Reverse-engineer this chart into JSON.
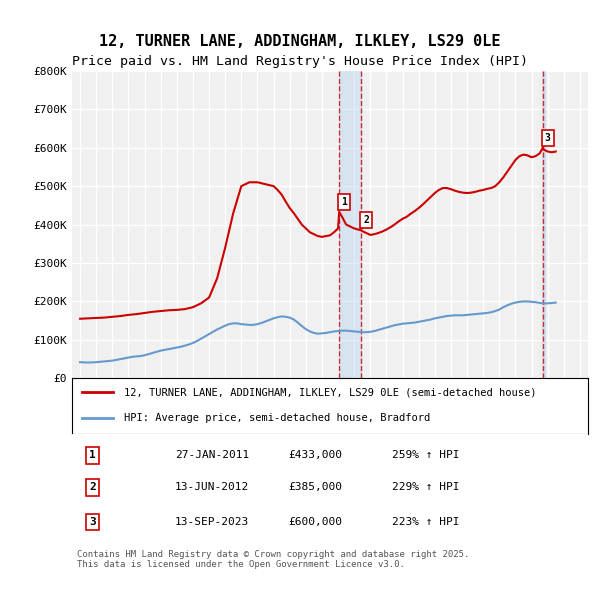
{
  "title": "12, TURNER LANE, ADDINGHAM, ILKLEY, LS29 0LE",
  "subtitle": "Price paid vs. HM Land Registry's House Price Index (HPI)",
  "title_fontsize": 11,
  "subtitle_fontsize": 9.5,
  "ylabel": "",
  "xlabel": "",
  "ylim": [
    0,
    800000
  ],
  "xlim": [
    1994.5,
    2026.5
  ],
  "yticks": [
    0,
    100000,
    200000,
    300000,
    400000,
    500000,
    600000,
    700000,
    800000
  ],
  "ytick_labels": [
    "£0",
    "£100K",
    "£200K",
    "£300K",
    "£400K",
    "£500K",
    "£600K",
    "£700K",
    "£800K"
  ],
  "xticks": [
    1995,
    1996,
    1997,
    1998,
    1999,
    2000,
    2001,
    2002,
    2003,
    2004,
    2005,
    2006,
    2007,
    2008,
    2009,
    2010,
    2011,
    2012,
    2013,
    2014,
    2015,
    2016,
    2017,
    2018,
    2019,
    2020,
    2021,
    2022,
    2023,
    2024,
    2025,
    2026
  ],
  "bg_color": "#f0f0f0",
  "grid_color": "#ffffff",
  "red_color": "#cc0000",
  "blue_color": "#6699cc",
  "sale1_x": 2011.07,
  "sale1_y": 433000,
  "sale1_label": "1",
  "sale2_x": 2012.45,
  "sale2_y": 385000,
  "sale2_label": "2",
  "sale3_x": 2023.7,
  "sale3_y": 600000,
  "sale3_label": "3",
  "legend_line1": "12, TURNER LANE, ADDINGHAM, ILKLEY, LS29 0LE (semi-detached house)",
  "legend_line2": "HPI: Average price, semi-detached house, Bradford",
  "table_data": [
    [
      "1",
      "27-JAN-2011",
      "£433,000",
      "259% ↑ HPI"
    ],
    [
      "2",
      "13-JUN-2012",
      "£385,000",
      "229% ↑ HPI"
    ],
    [
      "3",
      "13-SEP-2023",
      "£600,000",
      "223% ↑ HPI"
    ]
  ],
  "footer": "Contains HM Land Registry data © Crown copyright and database right 2025.\nThis data is licensed under the Open Government Licence v3.0.",
  "hpi_data_x": [
    1995.0,
    1995.25,
    1995.5,
    1995.75,
    1996.0,
    1996.25,
    1996.5,
    1996.75,
    1997.0,
    1997.25,
    1997.5,
    1997.75,
    1998.0,
    1998.25,
    1998.5,
    1998.75,
    1999.0,
    1999.25,
    1999.5,
    1999.75,
    2000.0,
    2000.25,
    2000.5,
    2000.75,
    2001.0,
    2001.25,
    2001.5,
    2001.75,
    2002.0,
    2002.25,
    2002.5,
    2002.75,
    2003.0,
    2003.25,
    2003.5,
    2003.75,
    2004.0,
    2004.25,
    2004.5,
    2004.75,
    2005.0,
    2005.25,
    2005.5,
    2005.75,
    2006.0,
    2006.25,
    2006.5,
    2006.75,
    2007.0,
    2007.25,
    2007.5,
    2007.75,
    2008.0,
    2008.25,
    2008.5,
    2008.75,
    2009.0,
    2009.25,
    2009.5,
    2009.75,
    2010.0,
    2010.25,
    2010.5,
    2010.75,
    2011.0,
    2011.25,
    2011.5,
    2011.75,
    2012.0,
    2012.25,
    2012.5,
    2012.75,
    2013.0,
    2013.25,
    2013.5,
    2013.75,
    2014.0,
    2014.25,
    2014.5,
    2014.75,
    2015.0,
    2015.25,
    2015.5,
    2015.75,
    2016.0,
    2016.25,
    2016.5,
    2016.75,
    2017.0,
    2017.25,
    2017.5,
    2017.75,
    2018.0,
    2018.25,
    2018.5,
    2018.75,
    2019.0,
    2019.25,
    2019.5,
    2019.75,
    2020.0,
    2020.25,
    2020.5,
    2020.75,
    2021.0,
    2021.25,
    2021.5,
    2021.75,
    2022.0,
    2022.25,
    2022.5,
    2022.75,
    2023.0,
    2023.25,
    2023.5,
    2023.75,
    2024.0,
    2024.25,
    2024.5
  ],
  "hpi_data_y": [
    42000,
    41500,
    41000,
    41500,
    42000,
    43000,
    44000,
    45000,
    46000,
    48000,
    50000,
    52000,
    54000,
    56000,
    57000,
    58000,
    60000,
    63000,
    66000,
    69000,
    72000,
    74000,
    76000,
    78000,
    80000,
    82000,
    85000,
    88000,
    92000,
    97000,
    103000,
    109000,
    115000,
    121000,
    127000,
    132000,
    137000,
    141000,
    143000,
    143000,
    141000,
    140000,
    139000,
    139000,
    141000,
    144000,
    148000,
    152000,
    156000,
    159000,
    161000,
    160000,
    158000,
    153000,
    145000,
    136000,
    128000,
    122000,
    118000,
    116000,
    117000,
    118000,
    120000,
    122000,
    123000,
    124000,
    124000,
    123000,
    122000,
    121000,
    120000,
    120000,
    121000,
    123000,
    126000,
    129000,
    132000,
    135000,
    138000,
    140000,
    142000,
    143000,
    144000,
    145000,
    147000,
    149000,
    151000,
    153000,
    156000,
    158000,
    160000,
    162000,
    163000,
    164000,
    164000,
    164000,
    165000,
    166000,
    167000,
    168000,
    169000,
    170000,
    172000,
    175000,
    179000,
    185000,
    190000,
    194000,
    197000,
    199000,
    200000,
    200000,
    199000,
    198000,
    196000,
    195000,
    195000,
    196000,
    197000
  ],
  "red_data_x": [
    1995.0,
    1995.5,
    1996.0,
    1996.5,
    1997.0,
    1997.5,
    1998.0,
    1998.5,
    1999.0,
    1999.5,
    2000.0,
    2000.5,
    2001.0,
    2001.5,
    2002.0,
    2002.5,
    2003.0,
    2003.5,
    2004.0,
    2004.5,
    2005.0,
    2005.5,
    2006.0,
    2006.5,
    2007.0,
    2007.25,
    2007.5,
    2007.75,
    2008.0,
    2008.25,
    2008.5,
    2008.75,
    2009.0,
    2009.25,
    2009.5,
    2009.75,
    2010.0,
    2010.25,
    2010.5,
    2010.75,
    2011.0,
    2011.07,
    2011.25,
    2011.5,
    2011.75,
    2012.0,
    2012.25,
    2012.45,
    2012.5,
    2012.75,
    2013.0,
    2013.25,
    2013.5,
    2013.75,
    2014.0,
    2014.25,
    2014.5,
    2014.75,
    2015.0,
    2015.25,
    2015.5,
    2015.75,
    2016.0,
    2016.25,
    2016.5,
    2016.75,
    2017.0,
    2017.25,
    2017.5,
    2017.75,
    2018.0,
    2018.25,
    2018.5,
    2018.75,
    2019.0,
    2019.25,
    2019.5,
    2019.75,
    2020.0,
    2020.25,
    2020.5,
    2020.75,
    2021.0,
    2021.25,
    2021.5,
    2021.75,
    2022.0,
    2022.25,
    2022.5,
    2022.75,
    2023.0,
    2023.25,
    2023.5,
    2023.7,
    2023.75,
    2024.0,
    2024.25,
    2024.5
  ],
  "red_data_y": [
    155000,
    156000,
    157000,
    158000,
    160000,
    162000,
    165000,
    167000,
    170000,
    173000,
    175000,
    177000,
    178000,
    180000,
    185000,
    195000,
    210000,
    260000,
    340000,
    430000,
    500000,
    510000,
    510000,
    505000,
    500000,
    490000,
    478000,
    460000,
    443000,
    430000,
    415000,
    400000,
    390000,
    380000,
    375000,
    370000,
    368000,
    370000,
    372000,
    380000,
    390000,
    433000,
    420000,
    400000,
    395000,
    390000,
    387000,
    385000,
    383000,
    378000,
    373000,
    375000,
    378000,
    382000,
    387000,
    393000,
    400000,
    408000,
    415000,
    420000,
    428000,
    435000,
    443000,
    452000,
    462000,
    472000,
    482000,
    490000,
    495000,
    495000,
    492000,
    488000,
    485000,
    483000,
    482000,
    483000,
    485000,
    488000,
    490000,
    493000,
    495000,
    500000,
    510000,
    523000,
    538000,
    553000,
    568000,
    578000,
    582000,
    580000,
    575000,
    578000,
    585000,
    600000,
    595000,
    590000,
    588000,
    590000
  ]
}
